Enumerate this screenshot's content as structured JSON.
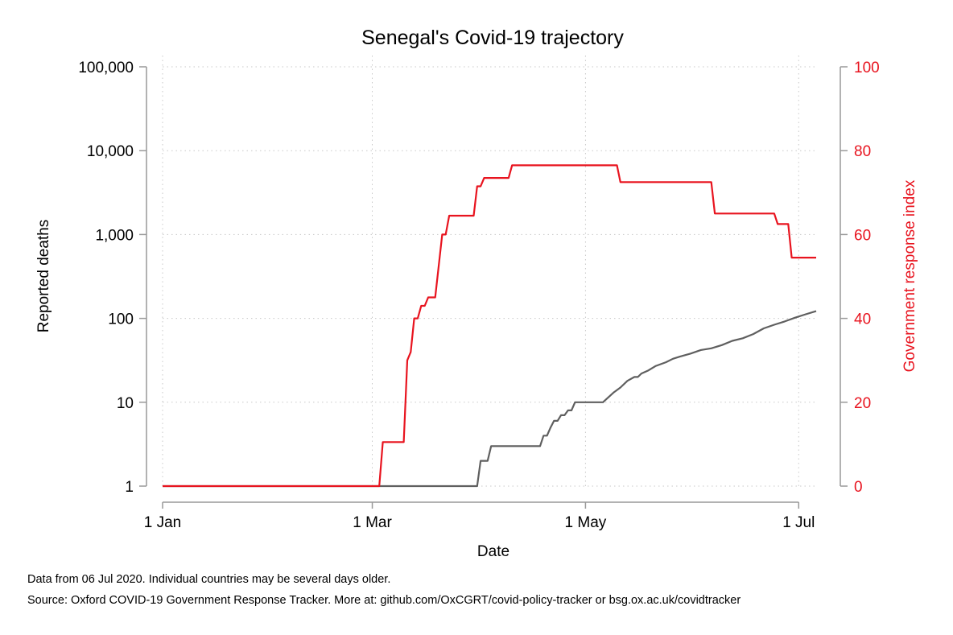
{
  "chart_data": {
    "type": "line",
    "title": "Senegal's Covid-19 trajectory",
    "xlabel": "Date",
    "ylabel_left": "Reported deaths",
    "ylabel_right": "Government response index",
    "x_ticks": [
      "1 Jan",
      "1 Mar",
      "1 May",
      "1 Jul"
    ],
    "x_tick_dates": [
      "2020-01-01",
      "2020-03-01",
      "2020-05-01",
      "2020-07-01"
    ],
    "xlim": [
      "2020-01-01",
      "2020-07-06"
    ],
    "y_left_scale": "log",
    "y_left_ticks": [
      "1",
      "10",
      "100",
      "1,000",
      "10,000",
      "100,000"
    ],
    "y_left_tick_values": [
      1,
      10,
      100,
      1000,
      10000,
      100000
    ],
    "y_left_lim": [
      1,
      100000
    ],
    "y_right_ticks": [
      "0",
      "20",
      "40",
      "60",
      "80",
      "100"
    ],
    "y_right_tick_values": [
      0,
      20,
      40,
      60,
      80,
      100
    ],
    "y_right_lim": [
      0,
      100
    ],
    "grid": true,
    "colors": {
      "deaths": "#5f5f5f",
      "response": "#e8141f",
      "axis": "#999999",
      "grid": "#c8c8c8"
    },
    "series": [
      {
        "axis": "left",
        "x": [
          "2020-01-01",
          "2020-03-31",
          "2020-04-01",
          "2020-04-03",
          "2020-04-04",
          "2020-04-18",
          "2020-04-19",
          "2020-04-20",
          "2020-04-21",
          "2020-04-22",
          "2020-04-23",
          "2020-04-24",
          "2020-04-25",
          "2020-04-26",
          "2020-04-27",
          "2020-04-28",
          "2020-04-29",
          "2020-05-06",
          "2020-05-09",
          "2020-05-11",
          "2020-05-13",
          "2020-05-15",
          "2020-05-16",
          "2020-05-17",
          "2020-05-19",
          "2020-05-21",
          "2020-05-24",
          "2020-05-26",
          "2020-05-28",
          "2020-05-31",
          "2020-06-03",
          "2020-06-06",
          "2020-06-09",
          "2020-06-12",
          "2020-06-15",
          "2020-06-18",
          "2020-06-21",
          "2020-06-24",
          "2020-06-27",
          "2020-06-30",
          "2020-07-03",
          "2020-07-06"
        ],
        "values": [
          1,
          1,
          2,
          2,
          3,
          3,
          4,
          4,
          5,
          6,
          6,
          7,
          7,
          8,
          8,
          10,
          10,
          10,
          13,
          15,
          18,
          20,
          20,
          22,
          24,
          27,
          30,
          33,
          35,
          38,
          42,
          44,
          48,
          54,
          58,
          65,
          76,
          84,
          92,
          102,
          112,
          122
        ]
      },
      {
        "axis": "right",
        "x": [
          "2020-01-01",
          "2020-03-03",
          "2020-03-04",
          "2020-03-10",
          "2020-03-11",
          "2020-03-12",
          "2020-03-13",
          "2020-03-14",
          "2020-03-15",
          "2020-03-16",
          "2020-03-17",
          "2020-03-19",
          "2020-03-21",
          "2020-03-22",
          "2020-03-23",
          "2020-03-24",
          "2020-03-30",
          "2020-03-31",
          "2020-04-01",
          "2020-04-02",
          "2020-04-09",
          "2020-04-10",
          "2020-05-10",
          "2020-05-11",
          "2020-06-06",
          "2020-06-07",
          "2020-06-24",
          "2020-06-25",
          "2020-06-28",
          "2020-06-29",
          "2020-07-06"
        ],
        "values": [
          0,
          0,
          10.5,
          10.5,
          30,
          32,
          40,
          40,
          43,
          43,
          45,
          45,
          60,
          60,
          64.5,
          64.5,
          64.5,
          71.5,
          71.5,
          73.5,
          73.5,
          76.5,
          76.5,
          72.5,
          72.5,
          65,
          65,
          62.5,
          62.5,
          54.5,
          54.5
        ]
      }
    ]
  },
  "notes": [
    "Data from 06 Jul 2020. Individual countries may be several days older.",
    "Source: Oxford COVID-19 Government Response Tracker. More at: github.com/OxCGRT/covid-policy-tracker or bsg.ox.ac.uk/covidtracker"
  ]
}
